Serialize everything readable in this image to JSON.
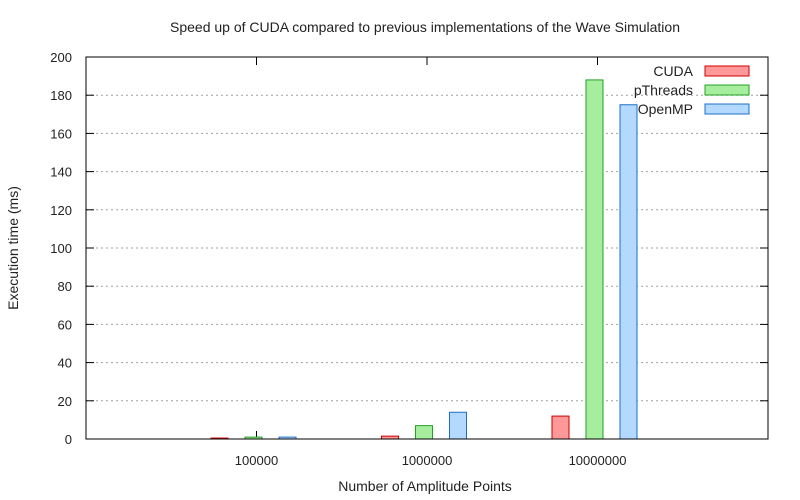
{
  "chart_data": {
    "type": "bar",
    "title": "Speed up of CUDA compared to previous implementations of the Wave Simulation",
    "xlabel": "Number of Amplitude Points",
    "ylabel": "Execution time (ms)",
    "categories": [
      "100000",
      "1000000",
      "10000000"
    ],
    "ylim": [
      0,
      200
    ],
    "yticks": [
      0,
      20,
      40,
      60,
      80,
      100,
      120,
      140,
      160,
      180,
      200
    ],
    "grid": true,
    "legend_position": "top-right",
    "series": [
      {
        "name": "CUDA",
        "color": "#ff9999",
        "stroke": "#cc0000",
        "values": [
          0.5,
          1.5,
          12
        ]
      },
      {
        "name": "pThreads",
        "color": "#a6ee9e",
        "stroke": "#22a022",
        "values": [
          1,
          7,
          188
        ]
      },
      {
        "name": "OpenMP",
        "color": "#b3d9ff",
        "stroke": "#1e6fc8",
        "values": [
          1,
          14,
          175
        ]
      }
    ]
  }
}
